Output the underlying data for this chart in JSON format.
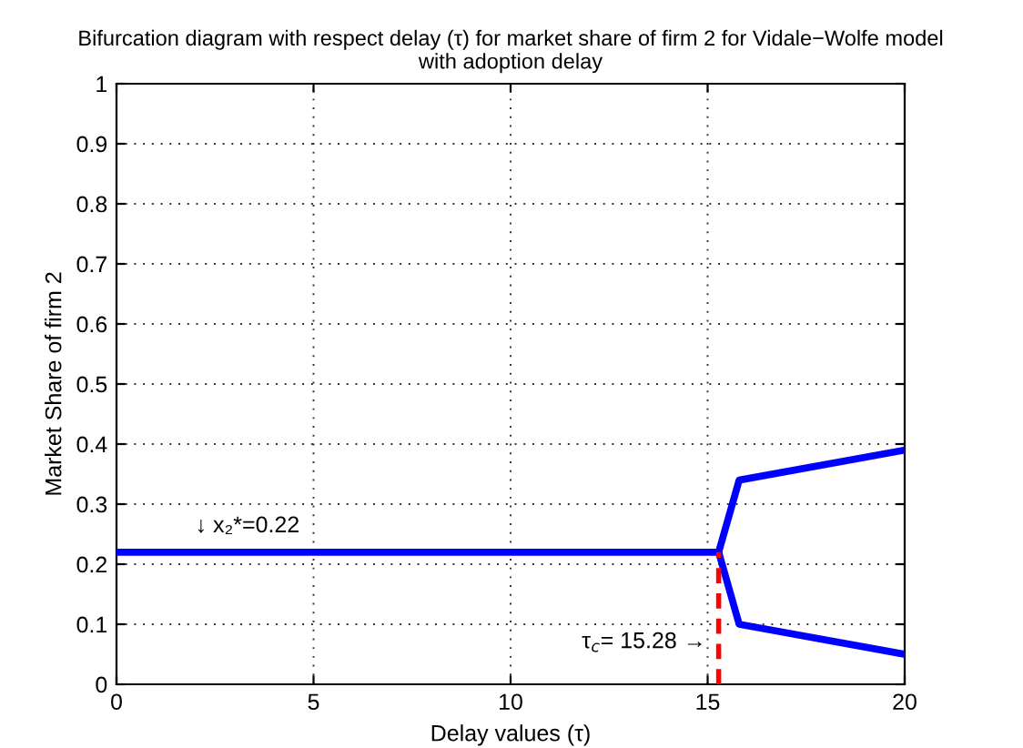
{
  "chart_data": {
    "type": "line",
    "title": "Bifurcation diagram with respect delay (τ) for market share of firm 2 for Vidale−Wolfe model\nwith adoption delay",
    "xlabel": "Delay values (τ)",
    "ylabel": "Market Share of firm 2",
    "series": [
      {
        "color": "#0000ff",
        "x": [
          0,
          15.28
        ],
        "values": [
          0.22,
          0.22
        ]
      },
      {
        "color": "#0000ff",
        "x": [
          15.28,
          15.8,
          20
        ],
        "values": [
          0.22,
          0.34,
          0.39
        ]
      },
      {
        "color": "#0000ff",
        "x": [
          15.28,
          15.8,
          20
        ],
        "values": [
          0.22,
          0.1,
          0.05
        ]
      },
      {
        "color": "#ff0000",
        "x": [
          15.28,
          15.28
        ],
        "values": [
          0,
          0.22
        ],
        "line_style": "dashed"
      }
    ],
    "annotations": [
      {
        "text": "↓ x₂*=0.22",
        "x": 2,
        "y": 0.22
      },
      {
        "text": "τ$_{c}$= 15.28 →",
        "x": 15.28,
        "y": 0.07
      }
    ],
    "xlim": [
      0,
      20
    ],
    "xticks": [
      0,
      5,
      10,
      15,
      20
    ],
    "ylim": [
      0,
      1
    ],
    "yticks": [
      0,
      0.1,
      0.2,
      0.3,
      0.4,
      0.5,
      0.6,
      0.7,
      0.8,
      0.9,
      1
    ],
    "grid": true,
    "line_style": "solid",
    "legend": false
  }
}
